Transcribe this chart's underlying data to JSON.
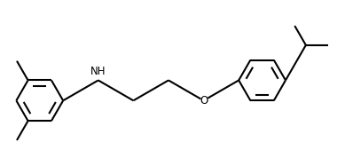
{
  "bg_color": "#ffffff",
  "line_color": "#000000",
  "line_width": 1.5,
  "fig_width": 3.89,
  "fig_height": 1.87,
  "dpi": 100,
  "nh_label": "NH",
  "o_label": "O",
  "font_size": 8.5
}
